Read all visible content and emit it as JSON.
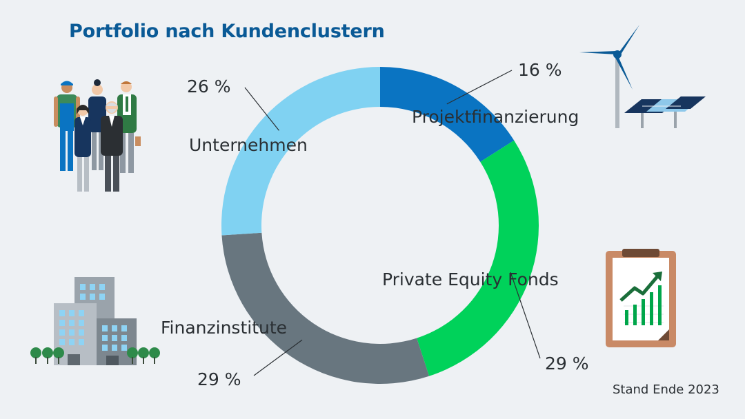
{
  "title": "Portfolio nach Kundenclustern",
  "footnote": "Stand Ende 2023",
  "colors": {
    "background": "#eef1f4",
    "title": "#0a5a96",
    "Projektfinanzierung": "#0a74c2",
    "Private Equity Fonds": "#00d25a",
    "Finanzinstitute": "#68767f",
    "Unternehmen": "#80d2f2"
  },
  "icons": [
    "people-group-icon",
    "wind-turbine-solar-icon",
    "clipboard-chart-icon",
    "office-buildings-icon"
  ],
  "chart_data": {
    "type": "pie",
    "style": "donut",
    "title": "Portfolio nach Kundenclustern",
    "unit": "%",
    "slices": [
      {
        "name": "Projektfinanzierung",
        "value": 16,
        "value_label": "16 %",
        "color": "#0a74c2"
      },
      {
        "name": "Private Equity Fonds",
        "value": 29,
        "value_label": "29 %",
        "color": "#00d25a"
      },
      {
        "name": "Finanzinstitute",
        "value": 29,
        "value_label": "29 %",
        "color": "#68767f"
      },
      {
        "name": "Unternehmen",
        "value": 26,
        "value_label": "26 %",
        "color": "#80d2f2"
      }
    ],
    "start": "top",
    "direction": "clockwise"
  }
}
